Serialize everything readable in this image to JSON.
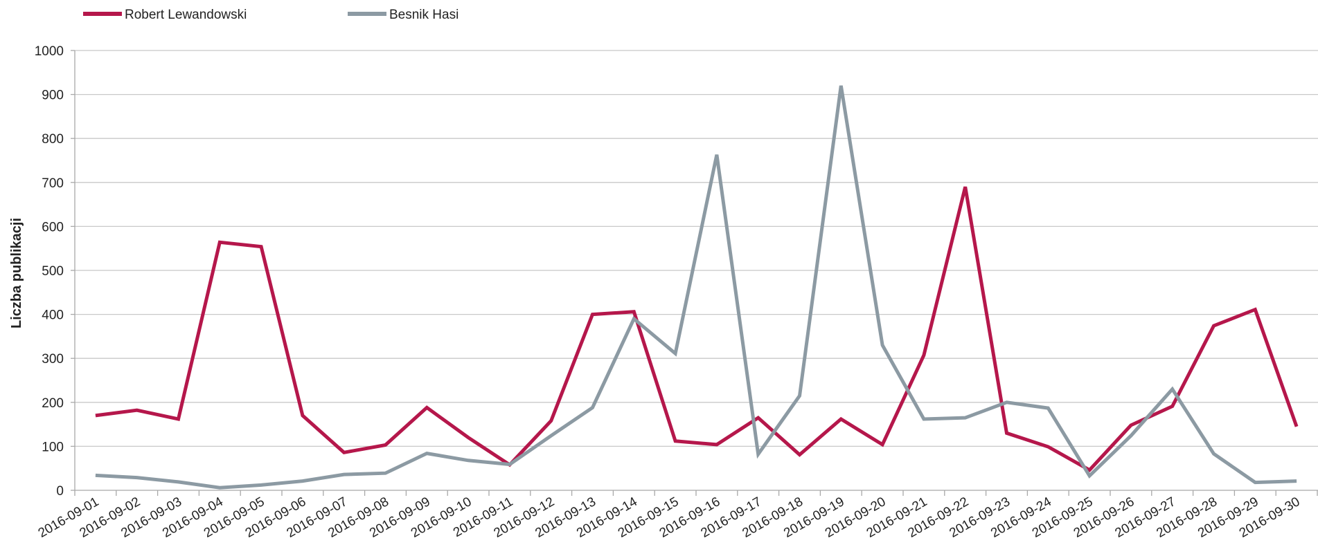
{
  "chart_data": {
    "type": "line",
    "title": "",
    "xlabel": "",
    "ylabel": "Liczba publikacji",
    "ylim": [
      0,
      1000
    ],
    "yticks": [
      0,
      100,
      200,
      300,
      400,
      500,
      600,
      700,
      800,
      900,
      1000
    ],
    "grid": true,
    "legend_position": "top-left",
    "categories": [
      "2016-09-01",
      "2016-09-02",
      "2016-09-03",
      "2016-09-04",
      "2016-09-05",
      "2016-09-06",
      "2016-09-07",
      "2016-09-08",
      "2016-09-09",
      "2016-09-10",
      "2016-09-11",
      "2016-09-12",
      "2016-09-13",
      "2016-09-14",
      "2016-09-15",
      "2016-09-16",
      "2016-09-17",
      "2016-09-18",
      "2016-09-19",
      "2016-09-20",
      "2016-09-21",
      "2016-09-22",
      "2016-09-23",
      "2016-09-24",
      "2016-09-25",
      "2016-09-26",
      "2016-09-27",
      "2016-09-28",
      "2016-09-29",
      "2016-09-30"
    ],
    "series": [
      {
        "name": "Robert Lewandowski",
        "color": "#b5174b",
        "values": [
          170,
          182,
          162,
          564,
          554,
          170,
          86,
          103,
          188,
          120,
          58,
          158,
          400,
          406,
          112,
          104,
          165,
          81,
          162,
          104,
          307,
          690,
          130,
          99,
          46,
          148,
          191,
          374,
          411,
          145
        ]
      },
      {
        "name": "Besnik Hasi",
        "color": "#8c9aa3",
        "values": [
          34,
          29,
          19,
          6,
          12,
          21,
          36,
          39,
          84,
          68,
          59,
          124,
          188,
          390,
          311,
          763,
          82,
          215,
          920,
          330,
          162,
          165,
          200,
          187,
          33,
          124,
          230,
          83,
          18,
          21
        ]
      }
    ]
  }
}
